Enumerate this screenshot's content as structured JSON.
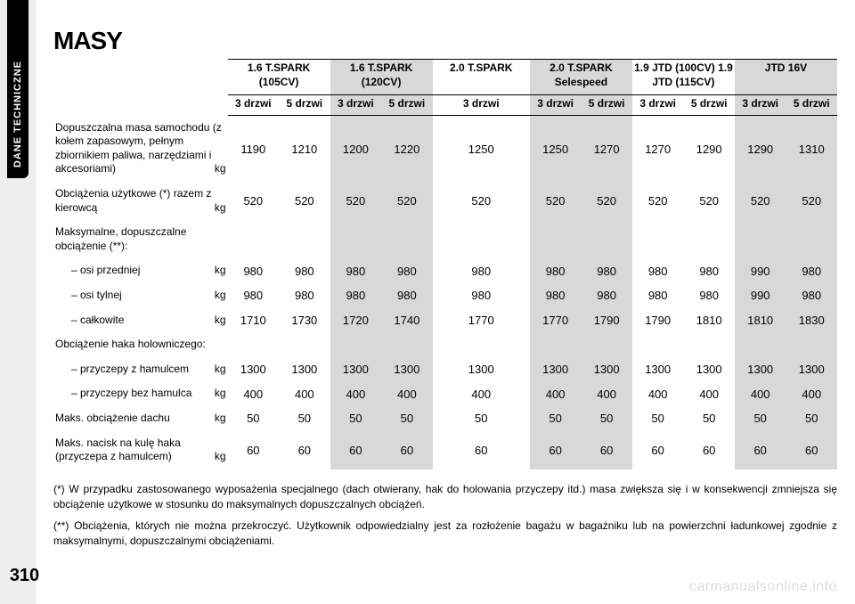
{
  "sideTab": "DANE TECHNICZNE",
  "pageNumber": "310",
  "title": "MASY",
  "watermark": "carmanualsonline.info",
  "columns": [
    {
      "top": "1.6 T.SPARK (105CV)",
      "sub": [
        "3 drzwi",
        "5 drzwi"
      ],
      "shade": "light",
      "span": 2
    },
    {
      "top": "1.6 T.SPARK (120CV)",
      "sub": [
        "3 drzwi",
        "5 drzwi"
      ],
      "shade": "dark",
      "span": 2
    },
    {
      "top": "2.0 T.SPARK",
      "sub": [
        "3 drzwi"
      ],
      "shade": "light",
      "span": 1
    },
    {
      "top": "2.0 T.SPARK Selespeed",
      "sub": [
        "3 drzwi",
        "5 drzwi"
      ],
      "shade": "dark",
      "span": 2
    },
    {
      "top": "1.9 JTD (100CV) 1.9 JTD (115CV)",
      "sub": [
        "3 drzwi",
        "5 drzwi"
      ],
      "shade": "light",
      "span": 2
    },
    {
      "top": "JTD 16V",
      "sub": [
        "3 drzwi",
        "5 drzwi"
      ],
      "shade": "dark",
      "span": 2
    }
  ],
  "rows": [
    {
      "label": "Dopuszczalna masa samochodu (z kołem zapasowym, pełnym zbiornikiem paliwa, narzędziami i akcesoriami)",
      "unit": "kg",
      "v": [
        "1190",
        "1210",
        "1200",
        "1220",
        "1250",
        "1250",
        "1270",
        "1270",
        "1290",
        "1290",
        "1310"
      ]
    },
    {
      "label": "Obciążenia użytkowe (*) razem z kierowcą",
      "unit": "kg",
      "v": [
        "520",
        "520",
        "520",
        "520",
        "520",
        "520",
        "520",
        "520",
        "520",
        "520",
        "520"
      ]
    },
    {
      "label": "Maksymalne, dopuszczalne obciążenie (**):",
      "unit": "",
      "v": [
        "",
        "",
        "",
        "",
        "",
        "",
        "",
        "",
        "",
        "",
        ""
      ]
    },
    {
      "label": "– osi przedniej",
      "indent": true,
      "unit": "kg",
      "v": [
        "980",
        "980",
        "980",
        "980",
        "980",
        "980",
        "980",
        "980",
        "980",
        "990",
        "980"
      ]
    },
    {
      "label": "– osi tylnej",
      "indent": true,
      "unit": "kg",
      "v": [
        "980",
        "980",
        "980",
        "980",
        "980",
        "980",
        "980",
        "980",
        "980",
        "990",
        "980"
      ]
    },
    {
      "label": "– całkowite",
      "indent": true,
      "unit": "kg",
      "v": [
        "1710",
        "1730",
        "1720",
        "1740",
        "1770",
        "1770",
        "1790",
        "1790",
        "1810",
        "1810",
        "1830"
      ]
    },
    {
      "label": "Obciążenie haka holowniczego:",
      "unit": "",
      "v": [
        "",
        "",
        "",
        "",
        "",
        "",
        "",
        "",
        "",
        "",
        ""
      ]
    },
    {
      "label": "– przyczepy z hamulcem",
      "indent": true,
      "unit": "kg",
      "v": [
        "1300",
        "1300",
        "1300",
        "1300",
        "1300",
        "1300",
        "1300",
        "1300",
        "1300",
        "1300",
        "1300"
      ]
    },
    {
      "label": "– przyczepy bez hamulca",
      "indent": true,
      "unit": "kg",
      "v": [
        "400",
        "400",
        "400",
        "400",
        "400",
        "400",
        "400",
        "400",
        "400",
        "400",
        "400"
      ]
    },
    {
      "label": "Maks. obciążenie dachu",
      "unit": "kg",
      "v": [
        "50",
        "50",
        "50",
        "50",
        "50",
        "50",
        "50",
        "50",
        "50",
        "50",
        "50"
      ]
    },
    {
      "label": "Maks. nacisk na kulę haka (przyczepa z hamulcem)",
      "unit": "kg",
      "v": [
        "60",
        "60",
        "60",
        "60",
        "60",
        "60",
        "60",
        "60",
        "60",
        "60",
        "60"
      ]
    }
  ],
  "footnotes": [
    "(*) W przypadku zastosowanego wyposażenia specjalnego (dach otwierany, hak do holowania przyczepy itd.) masa zwiększa się i w konsekwencji zmniejsza się obciążenie użytkowe w stosunku do maksymalnych dopuszczalnych obciążeń.",
    "(**) Obciążenia, których nie można przekroczyć. Użytkownik odpowiedzialny jest za rozłożenie bagażu w bagażniku lub na powierzchni ładunkowej zgodnie z maksymalnymi, dopuszczalnymi obciążeniami."
  ],
  "colors": {
    "shadeDark": "#d8d8d8",
    "shadeLight": "#ffffff",
    "text": "#000000",
    "watermark": "#dcdcdc"
  }
}
